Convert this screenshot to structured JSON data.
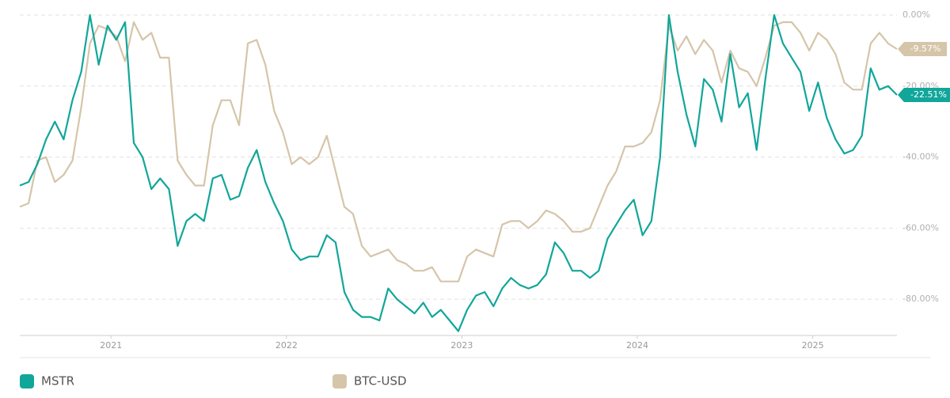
{
  "chart_data": {
    "type": "line",
    "xlim": [
      2020.48,
      2025.48
    ],
    "xticks": [
      2021,
      2022,
      2023,
      2024,
      2025
    ],
    "ylim": [
      -90,
      0
    ],
    "yticks": [
      {
        "value": 0,
        "label": "0.00%"
      },
      {
        "value": -20,
        "label": "-20.00%"
      },
      {
        "value": -40,
        "label": "-40.00%"
      },
      {
        "value": -60,
        "label": "-60.00%"
      },
      {
        "value": -80,
        "label": "-80.00%"
      }
    ],
    "grid": true,
    "legend": "bottom",
    "x": [
      2020.48,
      2020.53,
      2020.58,
      2020.63,
      2020.68,
      2020.73,
      2020.78,
      2020.83,
      2020.88,
      2020.93,
      2020.98,
      2021.03,
      2021.08,
      2021.13,
      2021.18,
      2021.23,
      2021.28,
      2021.33,
      2021.38,
      2021.43,
      2021.48,
      2021.53,
      2021.58,
      2021.63,
      2021.68,
      2021.73,
      2021.78,
      2021.83,
      2021.88,
      2021.93,
      2021.98,
      2022.03,
      2022.08,
      2022.13,
      2022.18,
      2022.23,
      2022.28,
      2022.33,
      2022.38,
      2022.43,
      2022.48,
      2022.53,
      2022.58,
      2022.63,
      2022.68,
      2022.73,
      2022.78,
      2022.83,
      2022.88,
      2022.93,
      2022.98,
      2023.03,
      2023.08,
      2023.13,
      2023.18,
      2023.23,
      2023.28,
      2023.33,
      2023.38,
      2023.43,
      2023.48,
      2023.53,
      2023.58,
      2023.63,
      2023.68,
      2023.73,
      2023.78,
      2023.83,
      2023.88,
      2023.93,
      2023.98,
      2024.03,
      2024.08,
      2024.13,
      2024.18,
      2024.23,
      2024.28,
      2024.33,
      2024.38,
      2024.43,
      2024.48,
      2024.53,
      2024.58,
      2024.63,
      2024.68,
      2024.73,
      2024.78,
      2024.83,
      2024.88,
      2024.93,
      2024.98,
      2025.03,
      2025.08,
      2025.13,
      2025.18,
      2025.23,
      2025.28,
      2025.33,
      2025.38,
      2025.43,
      2025.48
    ],
    "series": [
      {
        "name": "BTC-USD",
        "color": "#d5c5a9",
        "end_label": "-9.57%",
        "values": [
          -54,
          -53,
          -41,
          -40,
          -47,
          -45,
          -41,
          -26,
          -8,
          -3,
          -4,
          -6,
          -13,
          -2,
          -7,
          -5,
          -12,
          -12,
          -41,
          -45,
          -48,
          -48,
          -31,
          -24,
          -24,
          -31,
          -8,
          -7,
          -14,
          -27,
          -33,
          -42,
          -40,
          -42,
          -40,
          -34,
          -44,
          -54,
          -56,
          -65,
          -68,
          -67,
          -66,
          -69,
          -70,
          -72,
          -72,
          -71,
          -75,
          -75,
          -75,
          -68,
          -66,
          -67,
          -68,
          -59,
          -58,
          -58,
          -60,
          -58,
          -55,
          -56,
          -58,
          -61,
          -61,
          -60,
          -54,
          -48,
          -44,
          -37,
          -37,
          -36,
          -33,
          -24,
          -3,
          -10,
          -6,
          -11,
          -7,
          -10,
          -19,
          -10,
          -15,
          -16,
          -20,
          -12,
          -3,
          -2,
          -2,
          -5,
          -10,
          -5,
          -7,
          -11,
          -19,
          -21,
          -21,
          -8,
          -5,
          -8,
          -9.57
        ]
      },
      {
        "name": "MSTR",
        "color": "#11a69a",
        "end_label": "-22.51%",
        "values": [
          -48,
          -47,
          -42,
          -35,
          -30,
          -35,
          -24,
          -16,
          0,
          -14,
          -3,
          -7,
          -2,
          -36,
          -40,
          -49,
          -46,
          -49,
          -65,
          -58,
          -56,
          -58,
          -46,
          -45,
          -52,
          -51,
          -43,
          -38,
          -47,
          -53,
          -58,
          -66,
          -69,
          -68,
          -68,
          -62,
          -64,
          -78,
          -83,
          -85,
          -85,
          -86,
          -77,
          -80,
          -82,
          -84,
          -81,
          -85,
          -83,
          -86,
          -89,
          -83,
          -79,
          -78,
          -82,
          -77,
          -74,
          -76,
          -77,
          -76,
          -73,
          -64,
          -67,
          -72,
          -72,
          -74,
          -72,
          -63,
          -59,
          -55,
          -52,
          -62,
          -58,
          -40,
          0,
          -16,
          -28,
          -37,
          -18,
          -21,
          -30,
          -11,
          -26,
          -22,
          -38,
          -18,
          0,
          -8,
          -12,
          -16,
          -27,
          -19,
          -29,
          -35,
          -39,
          -38,
          -34,
          -15,
          -21,
          -20,
          -22.51
        ]
      }
    ],
    "legend_order": [
      "MSTR",
      "BTC-USD"
    ]
  }
}
